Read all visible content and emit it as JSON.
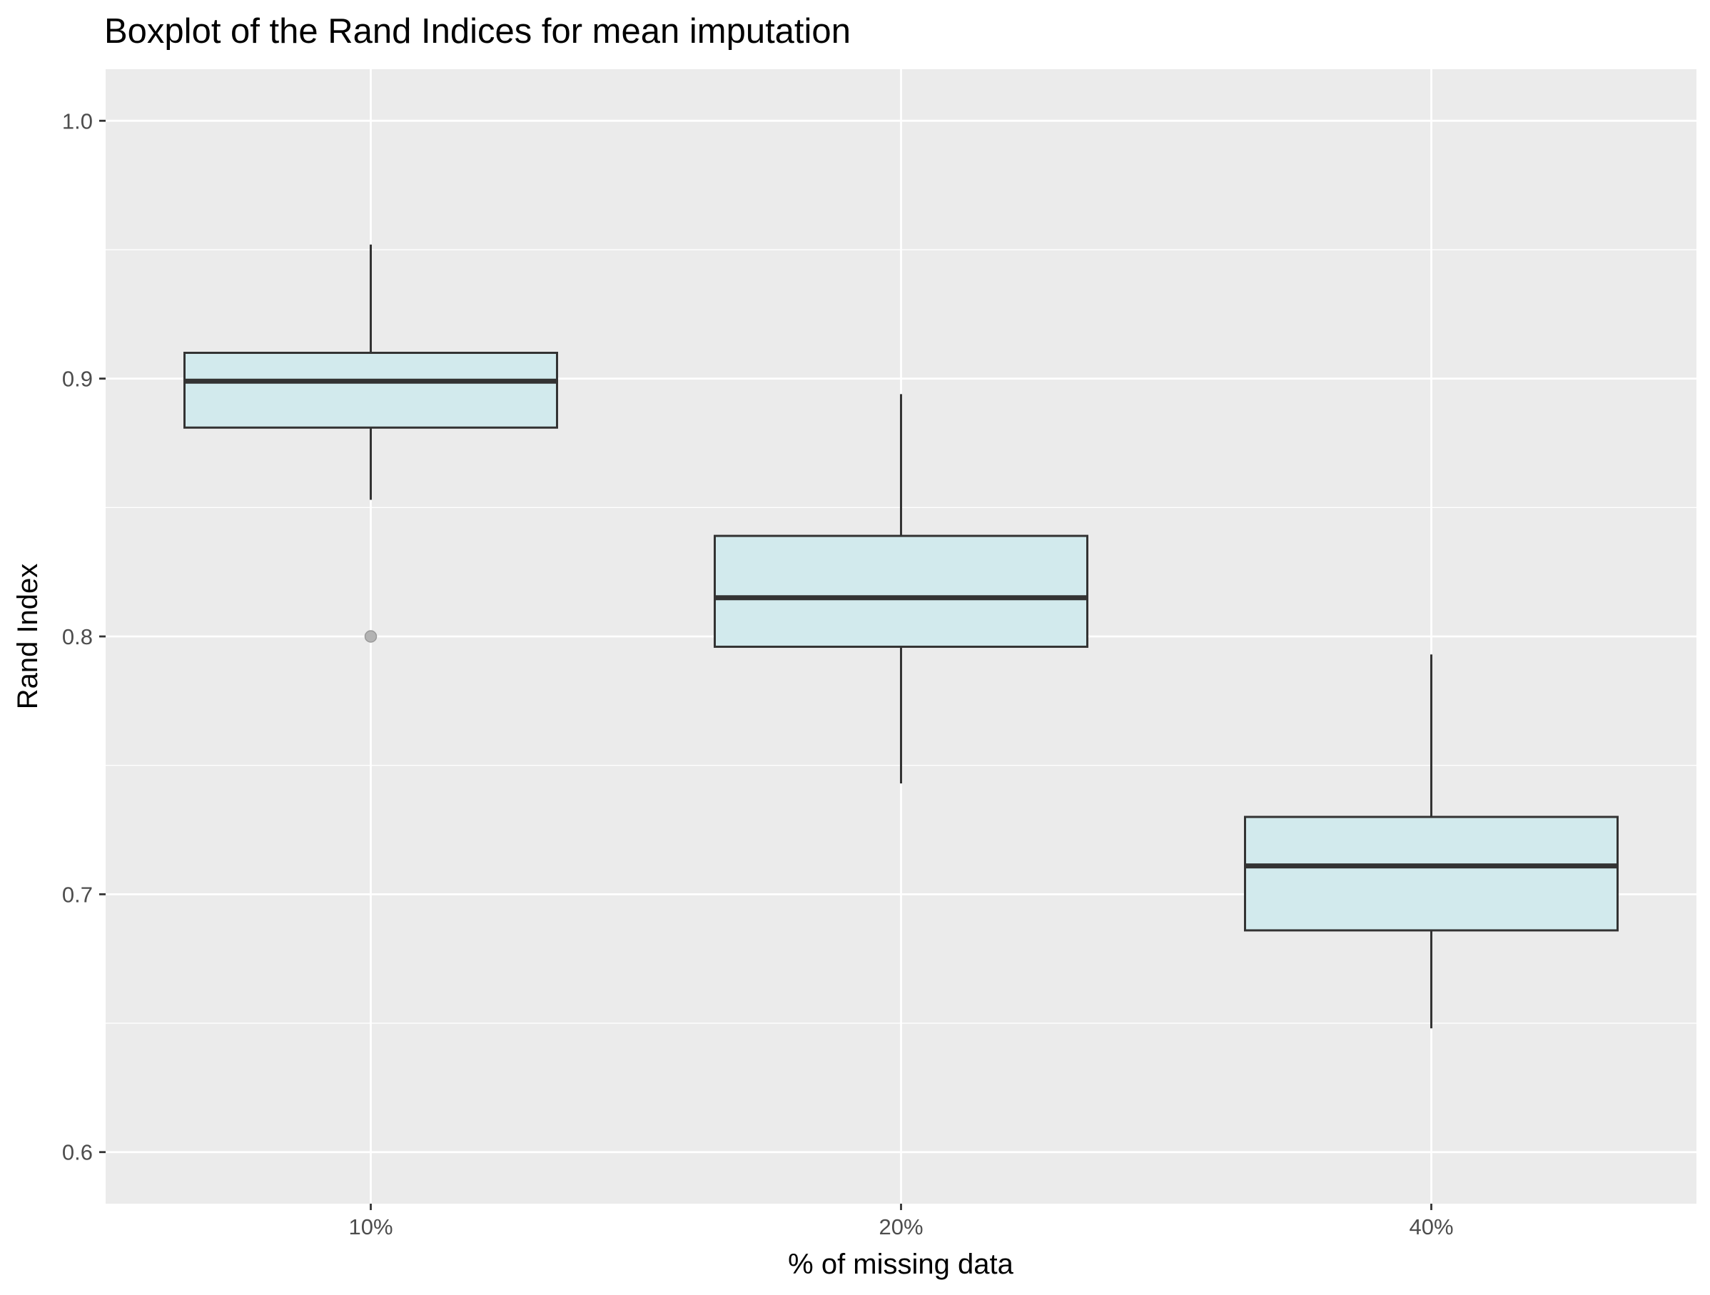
{
  "chart_data": {
    "type": "boxplot",
    "title": "Boxplot of the Rand Indices for mean imputation",
    "xlabel": "% of missing data",
    "ylabel": "Rand Index",
    "categories": [
      "10%",
      "20%",
      "40%"
    ],
    "ylim": [
      0.58,
      1.02
    ],
    "yticks": [
      "0.6",
      "0.7",
      "0.8",
      "0.9",
      "1.0"
    ],
    "grid": true,
    "legend": "none",
    "boxes": [
      {
        "category": "10%",
        "whisker_low": 0.853,
        "q1": 0.881,
        "median": 0.899,
        "q3": 0.91,
        "whisker_high": 0.952,
        "outliers": [
          0.8
        ]
      },
      {
        "category": "20%",
        "whisker_low": 0.743,
        "q1": 0.796,
        "median": 0.815,
        "q3": 0.839,
        "whisker_high": 0.894,
        "outliers": []
      },
      {
        "category": "40%",
        "whisker_low": 0.648,
        "q1": 0.686,
        "median": 0.711,
        "q3": 0.73,
        "whisker_high": 0.793,
        "outliers": []
      }
    ],
    "colors": {
      "panel": "#EBEBEB",
      "grid": "#FFFFFF",
      "box_fill": "#D2EAED",
      "box_stroke": "#333333",
      "outlier": "#B3B3B3",
      "tick": "#333333"
    }
  }
}
